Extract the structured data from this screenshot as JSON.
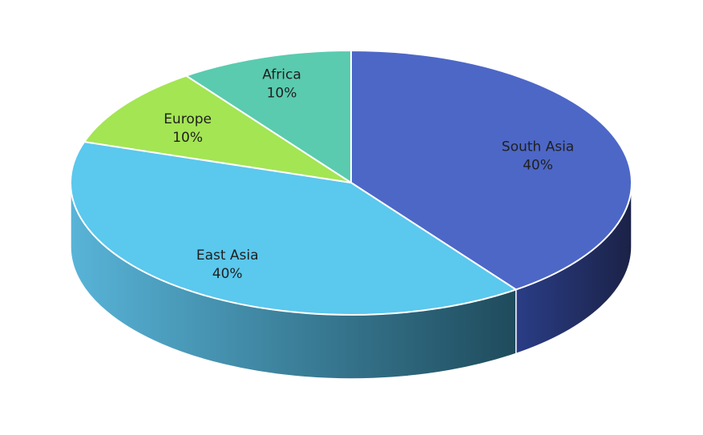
{
  "chart_data": {
    "type": "pie",
    "style": "3d",
    "categories": [
      "South Asia",
      "East Asia",
      "Europe",
      "Africa"
    ],
    "values": [
      40,
      40,
      10,
      10
    ],
    "value_labels": [
      "40%",
      "40%",
      "10%",
      "10%"
    ],
    "colors": [
      "#4D67C7",
      "#5BC8EE",
      "#A4E553",
      "#5ACBAF"
    ],
    "side_colors": {
      "South Asia": [
        "#2A3D86",
        "#1B2247"
      ],
      "East Asia": [
        "#58B4D8",
        "#1F4B5C"
      ]
    },
    "title": "",
    "legend": false
  }
}
